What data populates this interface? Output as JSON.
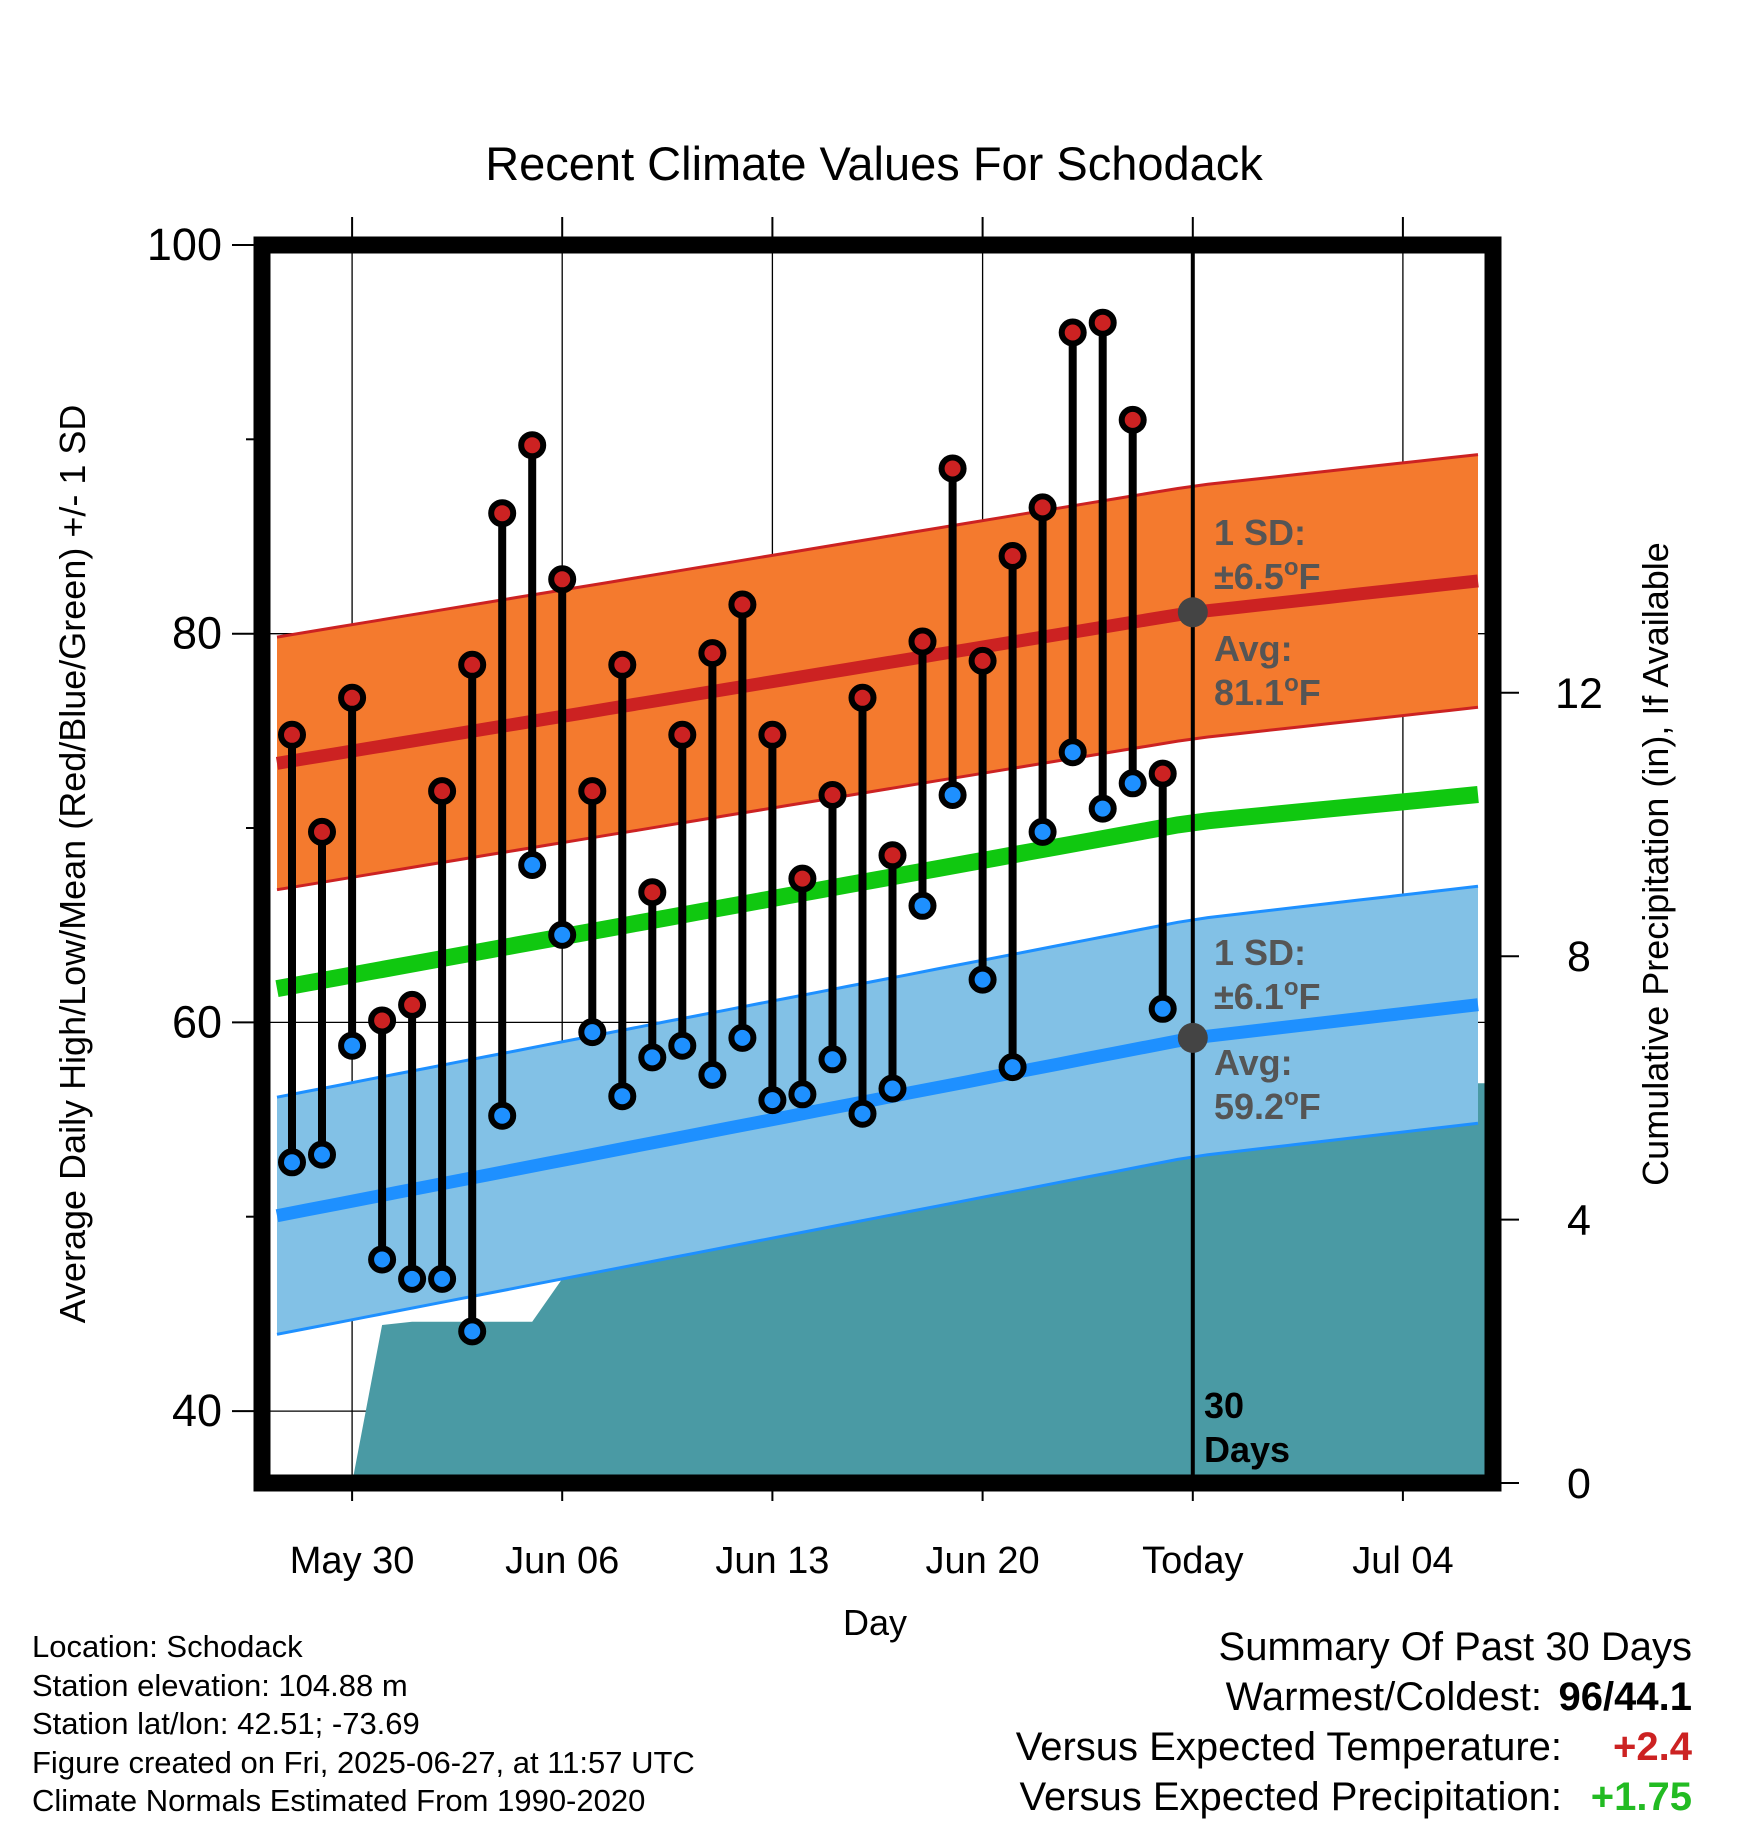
{
  "chart_data": {
    "type": "line",
    "title": "Recent Climate Values For Schodack",
    "xlabel": "Day",
    "ylabel": "Average Daily High/Low/Mean (Red/Blue/Green) +/- 1 SD",
    "y2label": "Cumulative Precipitation (in), If Available",
    "ylim": [
      36.3,
      100
    ],
    "y2lim": [
      0,
      18.8
    ],
    "xlim": [
      "2025-05-27",
      "2025-07-07"
    ],
    "x_ticks": [
      {
        "date": "2025-05-30",
        "label": "May 30"
      },
      {
        "date": "2025-06-06",
        "label": "Jun 06"
      },
      {
        "date": "2025-06-13",
        "label": "Jun 13"
      },
      {
        "date": "2025-06-20",
        "label": "Jun 20"
      },
      {
        "date": "2025-06-27",
        "label": "Today"
      },
      {
        "date": "2025-07-04",
        "label": "Jul 04"
      }
    ],
    "y_ticks": [
      40,
      60,
      80,
      100
    ],
    "y_minor_ticks": [
      50,
      70,
      90
    ],
    "y2_ticks": [
      0,
      4,
      8,
      12
    ],
    "grid": true,
    "today": "2025-06-27",
    "period_label_line1": "30",
    "period_label_line2": "Days",
    "colors": {
      "high_marker": "#cc2222",
      "low_marker": "#1e90ff",
      "high_band": "#f47a2e",
      "high_mean": "#cc2222",
      "low_band": "#82c1e6",
      "low_mean": "#1e90ff",
      "mean_line": "#10c810",
      "precip": "#4a9aa4",
      "avg_dot": "#444444",
      "annotation": "#555555"
    },
    "daily": {
      "dates": [
        "2025-05-28",
        "2025-05-29",
        "2025-05-30",
        "2025-05-31",
        "2025-06-01",
        "2025-06-02",
        "2025-06-03",
        "2025-06-04",
        "2025-06-05",
        "2025-06-06",
        "2025-06-07",
        "2025-06-08",
        "2025-06-09",
        "2025-06-10",
        "2025-06-11",
        "2025-06-12",
        "2025-06-13",
        "2025-06-14",
        "2025-06-15",
        "2025-06-16",
        "2025-06-17",
        "2025-06-18",
        "2025-06-19",
        "2025-06-20",
        "2025-06-21",
        "2025-06-22",
        "2025-06-23",
        "2025-06-24",
        "2025-06-25",
        "2025-06-26"
      ],
      "high": [
        74.8,
        69.8,
        76.7,
        60.1,
        60.9,
        71.9,
        78.4,
        86.2,
        89.7,
        82.8,
        71.9,
        78.4,
        66.7,
        74.8,
        79.0,
        81.5,
        74.8,
        67.4,
        71.7,
        76.7,
        68.6,
        79.6,
        88.5,
        78.6,
        84.0,
        86.5,
        95.5,
        96.0,
        91.0,
        72.8
      ],
      "low": [
        52.8,
        53.2,
        58.8,
        47.8,
        46.8,
        46.8,
        44.1,
        55.2,
        68.1,
        64.5,
        59.5,
        56.2,
        58.2,
        58.8,
        57.3,
        59.2,
        56.0,
        56.3,
        58.1,
        55.3,
        56.6,
        66.0,
        71.7,
        62.2,
        57.7,
        69.8,
        73.9,
        71.0,
        72.3,
        60.7
      ]
    },
    "normals": {
      "dates": [
        "2025-05-27",
        "2025-06-27",
        "2025-07-07"
      ],
      "high_mean": [
        73.2,
        81.1,
        82.8
      ],
      "high_sd": 6.5,
      "low_mean": [
        49.9,
        59.2,
        61.0
      ],
      "low_sd": 6.1,
      "daily_mean": [
        61.6,
        70.3,
        71.8
      ]
    },
    "precip_cumulative": {
      "dates": [
        "2025-05-28",
        "2025-05-29",
        "2025-05-30",
        "2025-05-31",
        "2025-06-01",
        "2025-06-02",
        "2025-06-03",
        "2025-06-04",
        "2025-06-05",
        "2025-06-06",
        "2025-06-07",
        "2025-06-08",
        "2025-06-09",
        "2025-06-10",
        "2025-06-11",
        "2025-06-12",
        "2025-06-13",
        "2025-06-14",
        "2025-06-15",
        "2025-06-16",
        "2025-06-17",
        "2025-06-18",
        "2025-06-19",
        "2025-06-20",
        "2025-06-21",
        "2025-06-22",
        "2025-06-23",
        "2025-06-24",
        "2025-06-25",
        "2025-06-26",
        "2025-06-27",
        "2025-07-07"
      ],
      "values": [
        0,
        0,
        0,
        2.4,
        2.45,
        2.45,
        2.45,
        2.45,
        2.45,
        3.1,
        4.5,
        4.5,
        4.6,
        5.4,
        5.4,
        5.4,
        5.4,
        5.65,
        5.65,
        5.7,
        5.85,
        6.0,
        6.0,
        6.0,
        6.0,
        6.05,
        6.05,
        6.05,
        6.05,
        6.07,
        6.07,
        6.07
      ]
    },
    "annotations": {
      "high_sd_line1": "1 SD:",
      "high_sd_line2": "±6.5",
      "high_avg_line1": "Avg:",
      "high_avg_line2": "81.1",
      "low_sd_line1": "1 SD:",
      "low_sd_line2": "±6.1",
      "low_avg_line1": "Avg:",
      "low_avg_line2": "59.2",
      "degree": "o",
      "unit": "F"
    }
  },
  "footer": {
    "location": "Location: Schodack",
    "elevation": "Station elevation: 104.88 m",
    "latlon": "Station lat/lon: 42.51; -73.69",
    "created": "Figure created on Fri, 2025-06-27, at 11:57 UTC",
    "normals": "Climate Normals Estimated From 1990-2020"
  },
  "summary": {
    "heading": "Summary Of Past 30 Days",
    "warm_cold_label": "Warmest/Coldest:",
    "warmest": "96",
    "separator": "/",
    "coldest": "44.1",
    "temp_label": "Versus Expected Temperature:",
    "temp_value": "+2.4",
    "temp_color": "#cc2222",
    "precip_label": "Versus Expected Precipitation:",
    "precip_value": "+1.75",
    "precip_color": "#22bb22"
  }
}
